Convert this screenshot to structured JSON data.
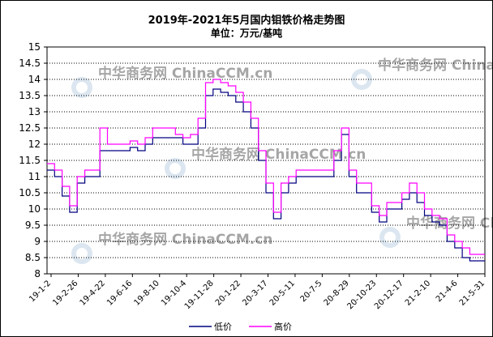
{
  "chart_data": {
    "type": "line",
    "title": "2019年-2021年5月国内钼铁价格走势图",
    "subtitle": "单位：万元/基吨",
    "ylim": [
      8,
      15
    ],
    "y_ticks": [
      "15",
      "14.5",
      "14",
      "13.5",
      "13",
      "12.5",
      "12",
      "11.5",
      "11",
      "10.5",
      "10",
      "9.5",
      "9",
      "8.5",
      "8"
    ],
    "x_ticks": [
      "19-1-2",
      "19-2-26",
      "19-4-22",
      "19-6-16",
      "19-8-10",
      "19-10-4",
      "19-11-28",
      "20-1-22",
      "20-3-17",
      "20-5-11",
      "20-7-5",
      "20-8-29",
      "20-10-23",
      "20-12-17",
      "21-2-10",
      "21-4-6",
      "21-5-31"
    ],
    "grid": true,
    "legend_position": "bottom",
    "watermark": "中华商务网 ChinaCCM.cn",
    "series": [
      {
        "name": "低价",
        "color": "#000080",
        "values": [
          11.2,
          11.0,
          10.4,
          9.9,
          10.8,
          11.0,
          11.0,
          11.8,
          11.8,
          11.8,
          11.8,
          11.9,
          11.8,
          12.0,
          12.2,
          12.2,
          12.2,
          12.2,
          12.0,
          12.0,
          12.5,
          13.5,
          13.7,
          13.6,
          13.5,
          13.3,
          13.0,
          12.5,
          11.5,
          10.5,
          9.7,
          10.5,
          10.8,
          11.0,
          11.0,
          11.0,
          11.0,
          11.0,
          11.5,
          12.3,
          11.0,
          10.5,
          10.5,
          9.9,
          9.6,
          10.0,
          10.0,
          10.3,
          10.5,
          10.2,
          9.8,
          9.6,
          9.5,
          9.0,
          8.8,
          8.5,
          8.4,
          8.4
        ]
      },
      {
        "name": "高价",
        "color": "#ff00ff",
        "values": [
          11.4,
          11.2,
          10.7,
          10.1,
          11.0,
          11.2,
          11.2,
          12.5,
          12.0,
          12.0,
          12.0,
          12.1,
          12.0,
          12.2,
          12.5,
          12.5,
          12.5,
          12.3,
          12.2,
          12.3,
          12.8,
          13.9,
          14.0,
          13.9,
          13.8,
          13.6,
          13.3,
          12.8,
          11.8,
          10.8,
          9.9,
          10.8,
          11.0,
          11.2,
          11.2,
          11.2,
          11.2,
          11.2,
          11.8,
          12.5,
          11.2,
          10.8,
          10.8,
          10.1,
          9.8,
          10.2,
          10.2,
          10.5,
          10.8,
          10.5,
          10.0,
          9.8,
          9.7,
          9.2,
          9.0,
          8.8,
          8.6,
          8.6
        ]
      }
    ]
  }
}
